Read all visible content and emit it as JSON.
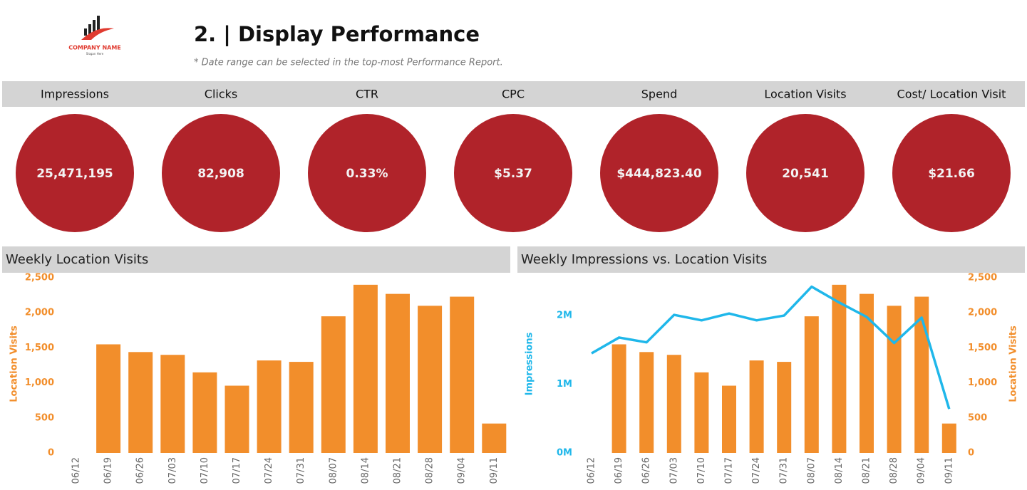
{
  "header": {
    "logo_name": "COMPANY NAME",
    "logo_slogan": "Slogan Here",
    "title": "2. | Display Performance",
    "note": "* Date range can be selected in the top-most Performance Report."
  },
  "kpis": [
    {
      "label": "Impressions",
      "value": "25,471,195"
    },
    {
      "label": "Clicks",
      "value": "82,908"
    },
    {
      "label": "CTR",
      "value": "0.33%"
    },
    {
      "label": "CPC",
      "value": "$5.37"
    },
    {
      "label": "Spend",
      "value": "$444,823.40"
    },
    {
      "label": "Location Visits",
      "value": "20,541"
    },
    {
      "label": "Cost/ Location Visit",
      "value": "$21.66"
    }
  ],
  "chart_data": [
    {
      "type": "bar",
      "title": "Weekly Location Visits",
      "y_label": "Location Visits",
      "categories": [
        "06/12",
        "06/19",
        "06/26",
        "07/03",
        "07/10",
        "07/17",
        "07/24",
        "07/31",
        "08/07",
        "08/14",
        "08/21",
        "08/28",
        "09/04",
        "09/11"
      ],
      "series": [
        {
          "color": "#f28e2b",
          "values": [
            null,
            1550,
            1440,
            1400,
            1150,
            960,
            1320,
            1300,
            1950,
            2400,
            2270,
            2100,
            2230,
            420
          ]
        }
      ],
      "ylim": [
        0,
        2500
      ],
      "yticks": [
        0,
        500,
        {
          "value": 1000,
          "label": "1,000"
        },
        {
          "value": 1500,
          "label": "1,500"
        },
        {
          "value": 2000,
          "label": "2,000"
        },
        {
          "value": 2500,
          "label": "2,500"
        }
      ]
    },
    {
      "type": "combo",
      "title": "Weekly Impressions vs. Location Visits",
      "y_label": "Impressions",
      "y2_label": "Location Visits",
      "categories": [
        "06/12",
        "06/19",
        "06/26",
        "07/03",
        "07/10",
        "07/17",
        "07/24",
        "07/31",
        "08/07",
        "08/14",
        "08/21",
        "08/28",
        "09/04",
        "09/11"
      ],
      "series": [
        {
          "type": "line",
          "color": "#1fb7ea",
          "values": [
            1450000,
            1680000,
            1610000,
            2010000,
            1930000,
            2030000,
            1930000,
            2000000,
            2420000,
            2190000,
            1980000,
            1600000,
            1970000,
            640000
          ]
        },
        {
          "type": "bar",
          "axis": "y2",
          "color": "#f28e2b",
          "values": [
            null,
            1550,
            1440,
            1400,
            1150,
            960,
            1320,
            1300,
            1950,
            2400,
            2270,
            2100,
            2230,
            420
          ]
        }
      ],
      "ylim": [
        0,
        2550000
      ],
      "yticks": [
        {
          "value": 0,
          "label": "0M"
        },
        {
          "value": 1000000,
          "label": "1M"
        },
        {
          "value": 2000000,
          "label": "2M"
        }
      ],
      "y2lim": [
        0,
        2500
      ],
      "y2ticks": [
        0,
        500,
        {
          "value": 1000,
          "label": "1,000"
        },
        {
          "value": 1500,
          "label": "1,500"
        },
        {
          "value": 2000,
          "label": "2,000"
        },
        {
          "value": 2500,
          "label": "2,500"
        }
      ]
    }
  ]
}
